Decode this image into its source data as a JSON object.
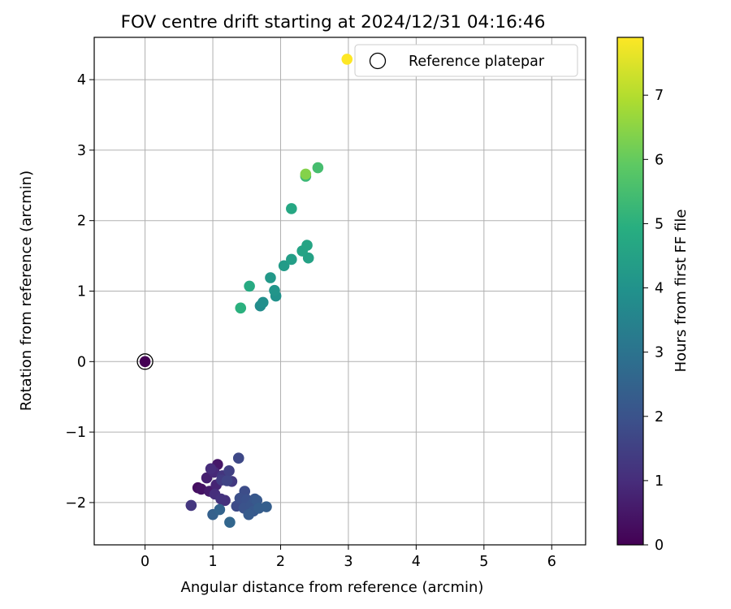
{
  "chart_data": {
    "type": "scatter",
    "title": "FOV centre drift starting at 2024/12/31 04:16:46",
    "xlabel": "Angular distance from reference (arcmin)",
    "ylabel": "Rotation from reference (arcmin)",
    "xlim": [
      -0.75,
      6.5
    ],
    "ylim": [
      -2.6,
      4.6
    ],
    "xticks": [
      "0",
      "1",
      "2",
      "3",
      "4",
      "5",
      "6"
    ],
    "yticks": [
      "−2",
      "−1",
      "0",
      "1",
      "2",
      "3",
      "4"
    ],
    "grid": true,
    "legend": {
      "position": "top-right",
      "label": "Reference platepar"
    },
    "reference": {
      "x": 0,
      "y": 0
    },
    "colorbar": {
      "label": "Hours from first FF file",
      "range": [
        0,
        7.9
      ],
      "ticks": [
        "0",
        "1",
        "2",
        "3",
        "4",
        "5",
        "6",
        "7"
      ],
      "colormap": "viridis"
    },
    "points": [
      {
        "x": 0.0,
        "y": 0.0,
        "t": 0.0
      },
      {
        "x": 0.78,
        "y": -1.79,
        "t": 0.3
      },
      {
        "x": 0.83,
        "y": -1.81,
        "t": 0.4
      },
      {
        "x": 1.07,
        "y": -1.46,
        "t": 0.5
      },
      {
        "x": 0.95,
        "y": -1.84,
        "t": 0.6
      },
      {
        "x": 0.91,
        "y": -1.65,
        "t": 0.7
      },
      {
        "x": 1.05,
        "y": -1.75,
        "t": 0.8
      },
      {
        "x": 1.02,
        "y": -1.57,
        "t": 0.9
      },
      {
        "x": 0.97,
        "y": -1.52,
        "t": 1.0
      },
      {
        "x": 1.03,
        "y": -1.88,
        "t": 1.05
      },
      {
        "x": 1.18,
        "y": -1.97,
        "t": 1.1
      },
      {
        "x": 1.12,
        "y": -1.95,
        "t": 1.15
      },
      {
        "x": 1.14,
        "y": -1.62,
        "t": 1.2
      },
      {
        "x": 0.68,
        "y": -2.04,
        "t": 1.25
      },
      {
        "x": 1.28,
        "y": -1.7,
        "t": 1.3
      },
      {
        "x": 1.13,
        "y": -1.68,
        "t": 1.4
      },
      {
        "x": 1.24,
        "y": -1.55,
        "t": 1.5
      },
      {
        "x": 1.21,
        "y": -1.69,
        "t": 1.6
      },
      {
        "x": 1.38,
        "y": -1.37,
        "t": 1.7
      },
      {
        "x": 1.35,
        "y": -2.05,
        "t": 1.8
      },
      {
        "x": 1.47,
        "y": -1.84,
        "t": 1.85
      },
      {
        "x": 1.4,
        "y": -1.94,
        "t": 1.9
      },
      {
        "x": 1.5,
        "y": -1.96,
        "t": 1.95
      },
      {
        "x": 1.46,
        "y": -2.08,
        "t": 2.0
      },
      {
        "x": 1.57,
        "y": -2.03,
        "t": 2.05
      },
      {
        "x": 1.62,
        "y": -1.95,
        "t": 2.1
      },
      {
        "x": 1.6,
        "y": -2.12,
        "t": 2.15
      },
      {
        "x": 1.65,
        "y": -1.97,
        "t": 2.2
      },
      {
        "x": 1.53,
        "y": -2.17,
        "t": 2.25
      },
      {
        "x": 1.68,
        "y": -2.08,
        "t": 2.3
      },
      {
        "x": 1.79,
        "y": -2.06,
        "t": 2.35
      },
      {
        "x": 1.0,
        "y": -2.17,
        "t": 2.4
      },
      {
        "x": 1.1,
        "y": -2.1,
        "t": 2.5
      },
      {
        "x": 1.25,
        "y": -2.28,
        "t": 2.6
      },
      {
        "x": 1.7,
        "y": 0.79,
        "t": 3.8
      },
      {
        "x": 1.74,
        "y": 0.84,
        "t": 3.9
      },
      {
        "x": 1.93,
        "y": 0.93,
        "t": 4.0
      },
      {
        "x": 1.91,
        "y": 1.01,
        "t": 4.1
      },
      {
        "x": 1.85,
        "y": 1.19,
        "t": 4.2
      },
      {
        "x": 2.05,
        "y": 1.36,
        "t": 4.3
      },
      {
        "x": 2.16,
        "y": 1.45,
        "t": 4.4
      },
      {
        "x": 2.41,
        "y": 1.47,
        "t": 4.5
      },
      {
        "x": 2.32,
        "y": 1.57,
        "t": 4.55
      },
      {
        "x": 2.39,
        "y": 1.65,
        "t": 4.6
      },
      {
        "x": 2.16,
        "y": 2.17,
        "t": 4.7
      },
      {
        "x": 1.54,
        "y": 1.07,
        "t": 4.8
      },
      {
        "x": 1.41,
        "y": 0.76,
        "t": 5.0
      },
      {
        "x": 2.37,
        "y": 2.63,
        "t": 5.3
      },
      {
        "x": 2.55,
        "y": 2.75,
        "t": 5.5
      },
      {
        "x": 2.37,
        "y": 2.66,
        "t": 6.4
      },
      {
        "x": 2.98,
        "y": 4.29,
        "t": 7.9
      }
    ]
  }
}
